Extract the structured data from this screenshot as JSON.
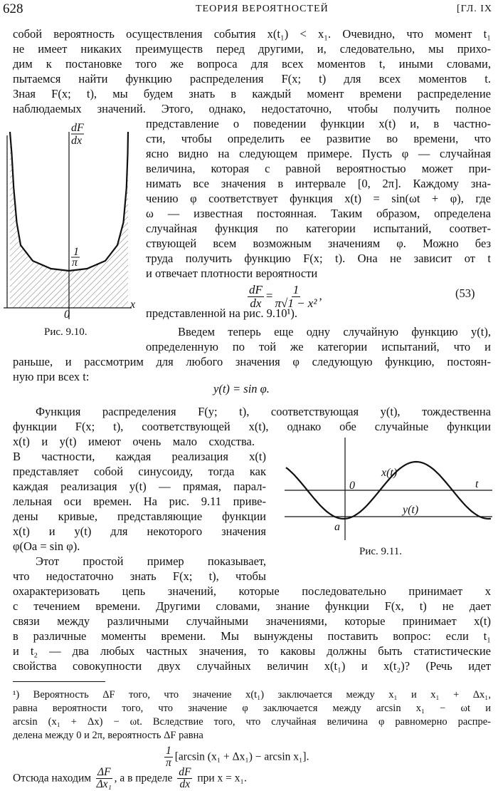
{
  "header": {
    "page_number": "628",
    "title": "ТЕОРИЯ ВЕРОЯТНОСТЕЙ",
    "chapter": "[ГЛ. IX"
  },
  "body": {
    "lines": [
      "собой вероятность осуществления события x(t₁) < x₁. Очевидно, что момент t₁",
      "не имеет никаких преимуществ перед другими, и, следовательно, мы прихо-",
      "дим к постановке того же вопроса для всех моментов t, иными словами,",
      "пытаемся найти функцию распределения F(x; t) для всех моментов t.",
      "Зная F(x; t), мы будем знать в каждый момент времени распределение",
      "наблюдаемых значений. Этого, однако, недостаточно, чтобы получить полное",
      "представление о поведении функции x(t) и, в частно-",
      "сти, чтобы определить ее развитие во времени, что",
      "ясно видно на следующем примере. Пусть φ — случайная",
      "величина, которая с равной вероятностью может при-",
      "нимать все значения в интервале [0, 2π]. Каждому зна-",
      "чению φ соответствует функция x(t) = sin(ωt + φ), где",
      "ω — известная постоянная. Таким образом, определена",
      "случайная функция по категории испытаний, соответ-",
      "ствующей всем возможным значениям φ. Можно без",
      "труда получить функцию F(x; t). Она не зависит от t",
      "и отвечает плотности вероятности",
      "представленной на рис. 9.10¹).",
      "Введем теперь еще одну случайную функцию y(t),",
      "определенную по той же категории испытаний, что и",
      "раньше, и рассмотрим для любого значения φ следующую функцию, постоян-",
      "ную при всех t:",
      "Функция распределения F(y; t), соответствующая y(t), тождественна",
      "функции F(x; t), соответствующей x(t), однако обе случайные функции",
      "x(t) и y(t) имеют очень мало сходства.",
      "В частности, каждая реализация x(t)",
      "представляет собой синусоиду, тогда как",
      "каждая реализация y(t) — прямая, парал-",
      "лельная оси времен. На рис. 9.11 приве-",
      "дены кривые, представляющие функции",
      "x(t) и y(t) для некоторого значения",
      "φ(Oa = sin φ).",
      "Этот простой пример показывает,",
      "что недостаточно знать F(x; t), чтобы",
      "охарактеризовать цепь значений, которые последовательно принимает x",
      "с течением времени. Другими словами, знание функции F(x, t) не дает",
      "связи между различными случайными значениями, которые принимает x(t)",
      "в различные моменты времени. Мы вынуждены поставить вопрос: если t₁",
      "и t₂ — два любых частных значения, то каковы должны быть статистические",
      "свойства совокупности двух случайных величин x(t₁) и x(t₂)? (Речь идет"
    ]
  },
  "equation_53": {
    "lhs_num": "dF",
    "lhs_den": "dx",
    "rhs_num": "1",
    "rhs_den": "π√1 − x²",
    "tail": ",",
    "number": "(53)"
  },
  "equation_y": "y(t) = sin φ.",
  "figure_9_10": {
    "y_label_num": "dF",
    "y_label_den": "dx",
    "tick_num": "1",
    "tick_den": "π",
    "origin_label": "0",
    "x_label": "x",
    "caption": "Рис. 9.10."
  },
  "figure_9_11": {
    "origin_label": "0",
    "x_curve_label": "x(t)",
    "t_label": "t",
    "y_curve_label": "y(t)",
    "a_label": "a",
    "caption": "Рис. 9.11."
  },
  "footnote": {
    "lines": [
      "¹) Вероятность ΔF того, что значение x(t₁) заключается между x₁ и x₁ + Δx₁,",
      "равна вероятности того, что значение φ заключается между arcsin x₁ − ωt и",
      "arcsin (x₁ + Δx) − ωt. Вследствие того, что случайная величина φ равномерно распре-",
      "делена между 0 и 2π, вероятность ΔF равна"
    ],
    "equation": {
      "num": "1",
      "den": "π",
      "rest": "[arcsin (x₁ + Δx₁) − arcsin x₁]."
    },
    "last_line": {
      "start": "Отсюда находим",
      "frac1_num": "ΔF",
      "frac1_den": "Δx₁",
      "middle": ", а в пределе",
      "frac2_num": "dF",
      "frac2_den": "dx",
      "end": "при x = x₁."
    }
  }
}
